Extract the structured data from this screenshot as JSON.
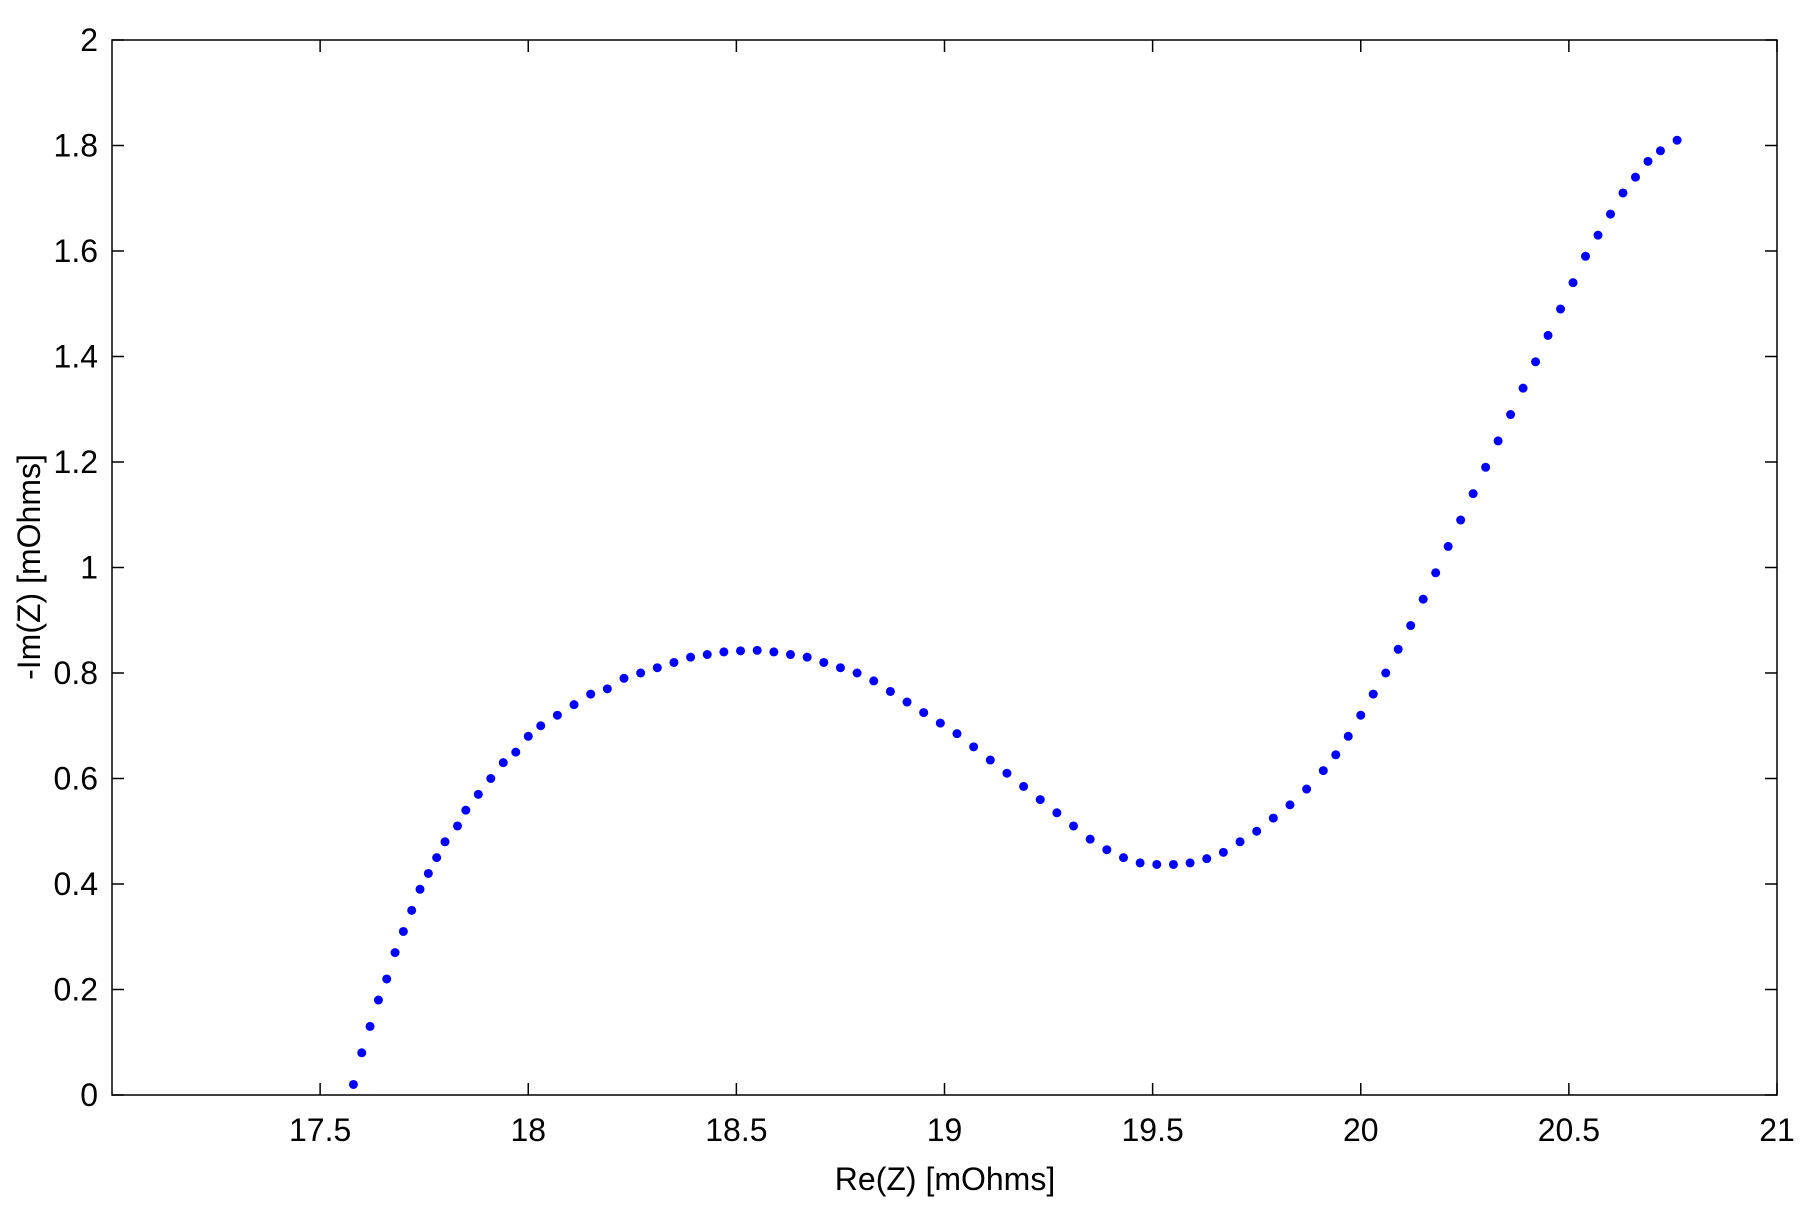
{
  "chart_data": {
    "type": "scatter",
    "title": "",
    "xlabel": "Re(Z) [mOhms]",
    "ylabel": "-Im(Z) [mOhms]",
    "xlim": [
      17,
      21
    ],
    "ylim": [
      0,
      2
    ],
    "grid": false,
    "box": true,
    "marker_color": "#0000ff",
    "x_ticks": [
      "17.5",
      "18",
      "18.5",
      "19",
      "19.5",
      "20",
      "20.5",
      "21"
    ],
    "y_ticks": [
      "0",
      "0.2",
      "0.4",
      "0.6",
      "0.8",
      "1",
      "1.2",
      "1.4",
      "1.6",
      "1.8",
      "2"
    ],
    "series": [
      {
        "points": [
          [
            17.58,
            0.02
          ],
          [
            17.6,
            0.08
          ],
          [
            17.62,
            0.13
          ],
          [
            17.64,
            0.18
          ],
          [
            17.66,
            0.22
          ],
          [
            17.68,
            0.27
          ],
          [
            17.7,
            0.31
          ],
          [
            17.72,
            0.35
          ],
          [
            17.74,
            0.39
          ],
          [
            17.76,
            0.42
          ],
          [
            17.78,
            0.45
          ],
          [
            17.8,
            0.48
          ],
          [
            17.83,
            0.51
          ],
          [
            17.85,
            0.54
          ],
          [
            17.88,
            0.57
          ],
          [
            17.91,
            0.6
          ],
          [
            17.94,
            0.63
          ],
          [
            17.97,
            0.65
          ],
          [
            18.0,
            0.68
          ],
          [
            18.03,
            0.7
          ],
          [
            18.07,
            0.72
          ],
          [
            18.11,
            0.74
          ],
          [
            18.15,
            0.76
          ],
          [
            18.19,
            0.77
          ],
          [
            18.23,
            0.79
          ],
          [
            18.27,
            0.8
          ],
          [
            18.31,
            0.81
          ],
          [
            18.35,
            0.82
          ],
          [
            18.39,
            0.83
          ],
          [
            18.43,
            0.835
          ],
          [
            18.47,
            0.84
          ],
          [
            18.51,
            0.842
          ],
          [
            18.55,
            0.843
          ],
          [
            18.59,
            0.84
          ],
          [
            18.63,
            0.835
          ],
          [
            18.67,
            0.83
          ],
          [
            18.71,
            0.82
          ],
          [
            18.75,
            0.81
          ],
          [
            18.79,
            0.8
          ],
          [
            18.83,
            0.785
          ],
          [
            18.87,
            0.765
          ],
          [
            18.91,
            0.745
          ],
          [
            18.95,
            0.725
          ],
          [
            18.99,
            0.705
          ],
          [
            19.03,
            0.685
          ],
          [
            19.07,
            0.66
          ],
          [
            19.11,
            0.635
          ],
          [
            19.15,
            0.61
          ],
          [
            19.19,
            0.585
          ],
          [
            19.23,
            0.56
          ],
          [
            19.27,
            0.535
          ],
          [
            19.31,
            0.51
          ],
          [
            19.35,
            0.485
          ],
          [
            19.39,
            0.465
          ],
          [
            19.43,
            0.45
          ],
          [
            19.47,
            0.44
          ],
          [
            19.51,
            0.437
          ],
          [
            19.55,
            0.437
          ],
          [
            19.59,
            0.44
          ],
          [
            19.63,
            0.448
          ],
          [
            19.67,
            0.46
          ],
          [
            19.71,
            0.48
          ],
          [
            19.75,
            0.5
          ],
          [
            19.79,
            0.525
          ],
          [
            19.83,
            0.55
          ],
          [
            19.87,
            0.58
          ],
          [
            19.91,
            0.615
          ],
          [
            19.94,
            0.645
          ],
          [
            19.97,
            0.68
          ],
          [
            20.0,
            0.72
          ],
          [
            20.03,
            0.76
          ],
          [
            20.06,
            0.8
          ],
          [
            20.09,
            0.845
          ],
          [
            20.12,
            0.89
          ],
          [
            20.15,
            0.94
          ],
          [
            20.18,
            0.99
          ],
          [
            20.21,
            1.04
          ],
          [
            20.24,
            1.09
          ],
          [
            20.27,
            1.14
          ],
          [
            20.3,
            1.19
          ],
          [
            20.33,
            1.24
          ],
          [
            20.36,
            1.29
          ],
          [
            20.39,
            1.34
          ],
          [
            20.42,
            1.39
          ],
          [
            20.45,
            1.44
          ],
          [
            20.48,
            1.49
          ],
          [
            20.51,
            1.54
          ],
          [
            20.54,
            1.59
          ],
          [
            20.57,
            1.63
          ],
          [
            20.6,
            1.67
          ],
          [
            20.63,
            1.71
          ],
          [
            20.66,
            1.74
          ],
          [
            20.69,
            1.77
          ],
          [
            20.72,
            1.79
          ],
          [
            20.76,
            1.81
          ]
        ]
      }
    ]
  }
}
